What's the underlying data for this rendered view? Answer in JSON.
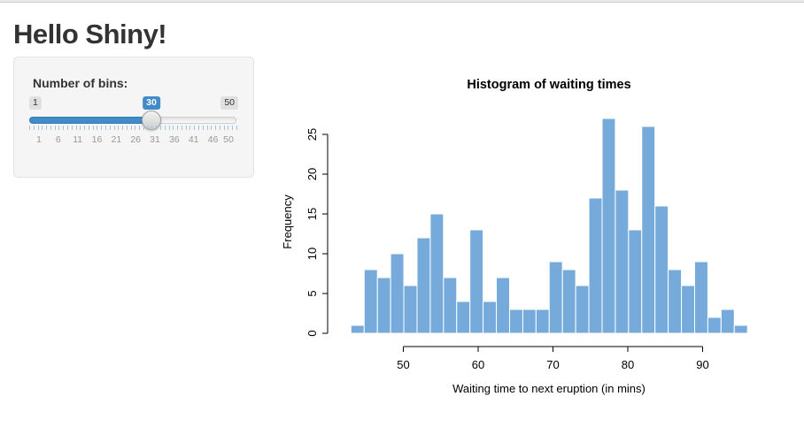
{
  "page": {
    "title": "Hello Shiny!"
  },
  "sidebar": {
    "slider": {
      "label": "Number of bins:",
      "min_label": "1",
      "max_label": "50",
      "value_label": "30",
      "min": 1,
      "max": 50,
      "value": 30,
      "grid_labels": [
        "1",
        "6",
        "11",
        "16",
        "21",
        "26",
        "31",
        "36",
        "41",
        "46",
        "50"
      ],
      "accent_color": "#428bca"
    }
  },
  "chart_data": {
    "type": "bar",
    "title": "Histogram of waiting times",
    "xlabel": "Waiting time to next eruption (in mins)",
    "ylabel": "Frequency",
    "bin_start": 43,
    "bin_end": 96,
    "bin_count": 30,
    "counts": [
      1,
      8,
      7,
      10,
      6,
      12,
      15,
      7,
      4,
      13,
      4,
      7,
      3,
      3,
      3,
      9,
      8,
      6,
      17,
      27,
      18,
      13,
      26,
      16,
      8,
      6,
      9,
      2,
      3,
      1
    ],
    "x_ticks": [
      50,
      60,
      70,
      80,
      90
    ],
    "y_ticks": [
      0,
      5,
      10,
      15,
      20,
      25
    ],
    "xlim": [
      43,
      96
    ],
    "ylim": [
      0,
      27
    ],
    "grid": false,
    "bar_color": "#75AADB",
    "bar_border": "#ffffff"
  }
}
